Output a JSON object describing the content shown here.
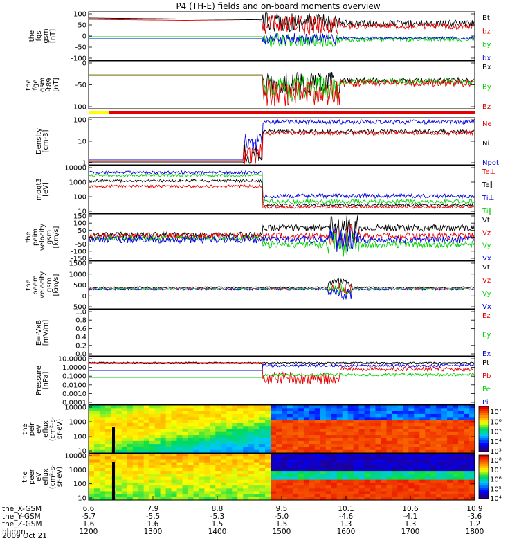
{
  "chart_data": {
    "title": "P4 (TH-E) fields and on-board moments overview",
    "date": "2009 Oct 21",
    "colors": {
      "black": "#000000",
      "red": "#e60000",
      "green": "#00d200",
      "blue": "#0000e0",
      "yellow": "#ffff00"
    },
    "x_axis": {
      "rows": [
        {
          "name": "the_X-GSM",
          "values": [
            "6.6",
            "7.9",
            "8.8",
            "9.5",
            "10.1",
            "10.6",
            "10.9"
          ]
        },
        {
          "name": "the_Y-GSM",
          "values": [
            "-5.7",
            "-5.5",
            "-5.3",
            "-5.0",
            "-4.6",
            "-4.1",
            "-3.6"
          ]
        },
        {
          "name": "the_Z-GSM",
          "values": [
            "1.6",
            "1.6",
            "1.5",
            "1.5",
            "1.3",
            "1.3",
            "1.2"
          ]
        },
        {
          "name": "hhmm",
          "values": [
            "1200",
            "1300",
            "1400",
            "1500",
            "1600",
            "1700",
            "1800"
          ]
        }
      ]
    },
    "panels": [
      {
        "id": "fgs",
        "ylabel": [
          "the",
          "fgs",
          "gsm",
          "[nT]"
        ],
        "ticks": [
          "100",
          "50",
          "0",
          "-50",
          "-100"
        ],
        "legend": [
          {
            "text": "Bt",
            "color": "#000000"
          },
          {
            "text": "bz",
            "color": "#e60000"
          },
          {
            "text": "by",
            "color": "#00d200"
          },
          {
            "text": "bx",
            "color": "#0000e0"
          }
        ]
      },
      {
        "id": "fge",
        "ylabel": [
          "the",
          "fge",
          "gsm",
          "-t89",
          "[nT]"
        ],
        "ticks": [
          "0",
          "-50",
          "-100"
        ],
        "legend": [
          {
            "text": "Bx",
            "color": "#000000"
          },
          {
            "text": "By",
            "color": "#00d200"
          },
          {
            "text": "Bz",
            "color": "#e60000"
          }
        ]
      },
      {
        "id": "density",
        "ylabel": [
          "Density",
          "[cm-3]"
        ],
        "ticks": [
          "100",
          "10",
          "1"
        ],
        "legend": [
          {
            "text": "Ne",
            "color": "#e60000"
          },
          {
            "text": "Ni",
            "color": "#000000"
          },
          {
            "text": "Npot",
            "color": "#0000e0"
          }
        ]
      },
      {
        "id": "temp",
        "ylabel": [
          "moqt3",
          "[eV]"
        ],
        "ticks": [
          "10000",
          "1000",
          "100",
          "10"
        ],
        "legend": [
          {
            "text": "Te⊥",
            "color": "#e60000"
          },
          {
            "text": "Te∥",
            "color": "#000000"
          },
          {
            "text": "Ti⊥",
            "color": "#0000e0"
          },
          {
            "text": "Ti∥",
            "color": "#00d200"
          }
        ]
      },
      {
        "id": "peim",
        "ylabel": [
          "the",
          "peim",
          "velocity",
          "gsm",
          "[km/s]"
        ],
        "ticks": [
          "150",
          "100",
          "50",
          "0",
          "-50",
          "-100",
          "-150"
        ],
        "legend": [
          {
            "text": "Vt",
            "color": "#000000"
          },
          {
            "text": "Vz",
            "color": "#e60000"
          },
          {
            "text": "Vy",
            "color": "#00d200"
          },
          {
            "text": "Vx",
            "color": "#0000e0"
          }
        ]
      },
      {
        "id": "peem",
        "ylabel": [
          "the",
          "peem",
          "velocity",
          "gsm",
          "[km/s]"
        ],
        "ticks": [
          "1500",
          "1000",
          "500",
          "0",
          "-500"
        ],
        "legend": [
          {
            "text": "Vt",
            "color": "#000000"
          },
          {
            "text": "Vz",
            "color": "#e60000"
          },
          {
            "text": "Vy",
            "color": "#00d200"
          },
          {
            "text": "Vx",
            "color": "#0000e0"
          }
        ]
      },
      {
        "id": "efield",
        "ylabel": [
          "E=-VxB",
          "[mV/m]"
        ],
        "ticks": [
          "1.0",
          "0.8",
          "0.6",
          "0.4",
          "0.2",
          "0.0"
        ],
        "legend": [
          {
            "text": "Ez",
            "color": "#e60000"
          },
          {
            "text": "Ey",
            "color": "#00d200"
          },
          {
            "text": "Ex",
            "color": "#0000e0"
          }
        ]
      },
      {
        "id": "pressure",
        "ylabel": [
          "Pressure",
          "[nPa]"
        ],
        "ticks": [
          "10.0000",
          "1.0000",
          "0.1000",
          "0.0100",
          "0.0010",
          "0.0001"
        ],
        "legend": [
          {
            "text": "Pt",
            "color": "#000000"
          },
          {
            "text": "Pb",
            "color": "#e60000"
          },
          {
            "text": "Pe",
            "color": "#00d200"
          },
          {
            "text": "Pi",
            "color": "#0000e0"
          }
        ]
      },
      {
        "id": "peir",
        "ylabel": [
          "the",
          "peir",
          "eV",
          "eflux",
          "(cm²-s-",
          "sr-eV)"
        ],
        "ticks": [
          "10000",
          "1000",
          "100",
          "10"
        ],
        "colorbar": [
          "10⁷",
          "10⁶",
          "10⁵",
          "10⁴",
          "10³"
        ]
      },
      {
        "id": "peer",
        "ylabel": [
          "the",
          "peer",
          "eV",
          "eflux",
          "(cm²-s-",
          "sr-eV)"
        ],
        "ticks": [
          "10000",
          "1000",
          "100",
          "10"
        ],
        "colorbar": [
          "10⁸",
          "10⁷",
          "10⁶",
          "10⁵",
          "10⁴"
        ]
      }
    ]
  }
}
